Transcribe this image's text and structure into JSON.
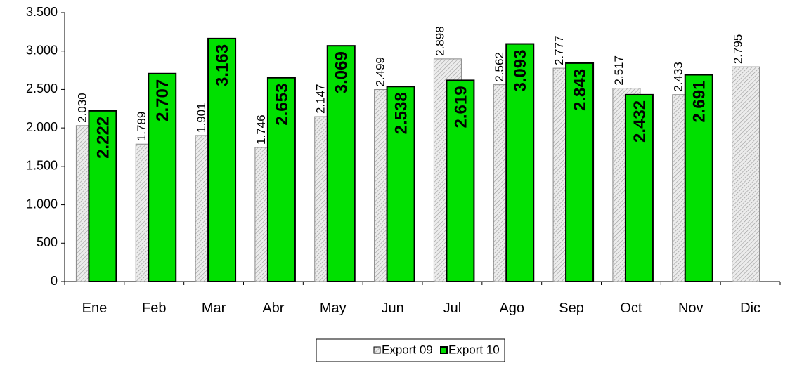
{
  "chart_data": {
    "type": "bar",
    "categories": [
      "Ene",
      "Feb",
      "Mar",
      "Abr",
      "May",
      "Jun",
      "Jul",
      "Ago",
      "Sep",
      "Oct",
      "Nov",
      "Dic"
    ],
    "series": [
      {
        "name": "Export 09",
        "color": "#d9d9d9",
        "values": [
          2030,
          1789,
          1901,
          1746,
          2147,
          2499,
          2898,
          2562,
          2777,
          2517,
          2433,
          2795
        ],
        "value_labels": [
          "2.030",
          "1.789",
          "1.901",
          "1.746",
          "2.147",
          "2.499",
          "2.898",
          "2.562",
          "2.777",
          "2.517",
          "2.433",
          "2.795"
        ]
      },
      {
        "name": "Export 10",
        "color": "#00e000",
        "values": [
          2222,
          2707,
          3163,
          2653,
          3069,
          2538,
          2619,
          3093,
          2843,
          2432,
          2691,
          null
        ],
        "value_labels": [
          "2.222",
          "2.707",
          "3.163",
          "2.653",
          "3.069",
          "2.538",
          "2.619",
          "3.093",
          "2.843",
          "2.432",
          "2.691",
          null
        ]
      }
    ],
    "ylim": [
      0,
      3500
    ],
    "yticks": [
      0,
      500,
      {
        "value": 1000,
        "label": "1.000"
      },
      {
        "value": 1500,
        "label": "1.500"
      },
      {
        "value": 2000,
        "label": "2.000"
      },
      {
        "value": 2500,
        "label": "2.500"
      },
      {
        "value": 3000,
        "label": "3.000"
      },
      {
        "value": 3500,
        "label": "3.500"
      }
    ],
    "legend": "bottom"
  }
}
